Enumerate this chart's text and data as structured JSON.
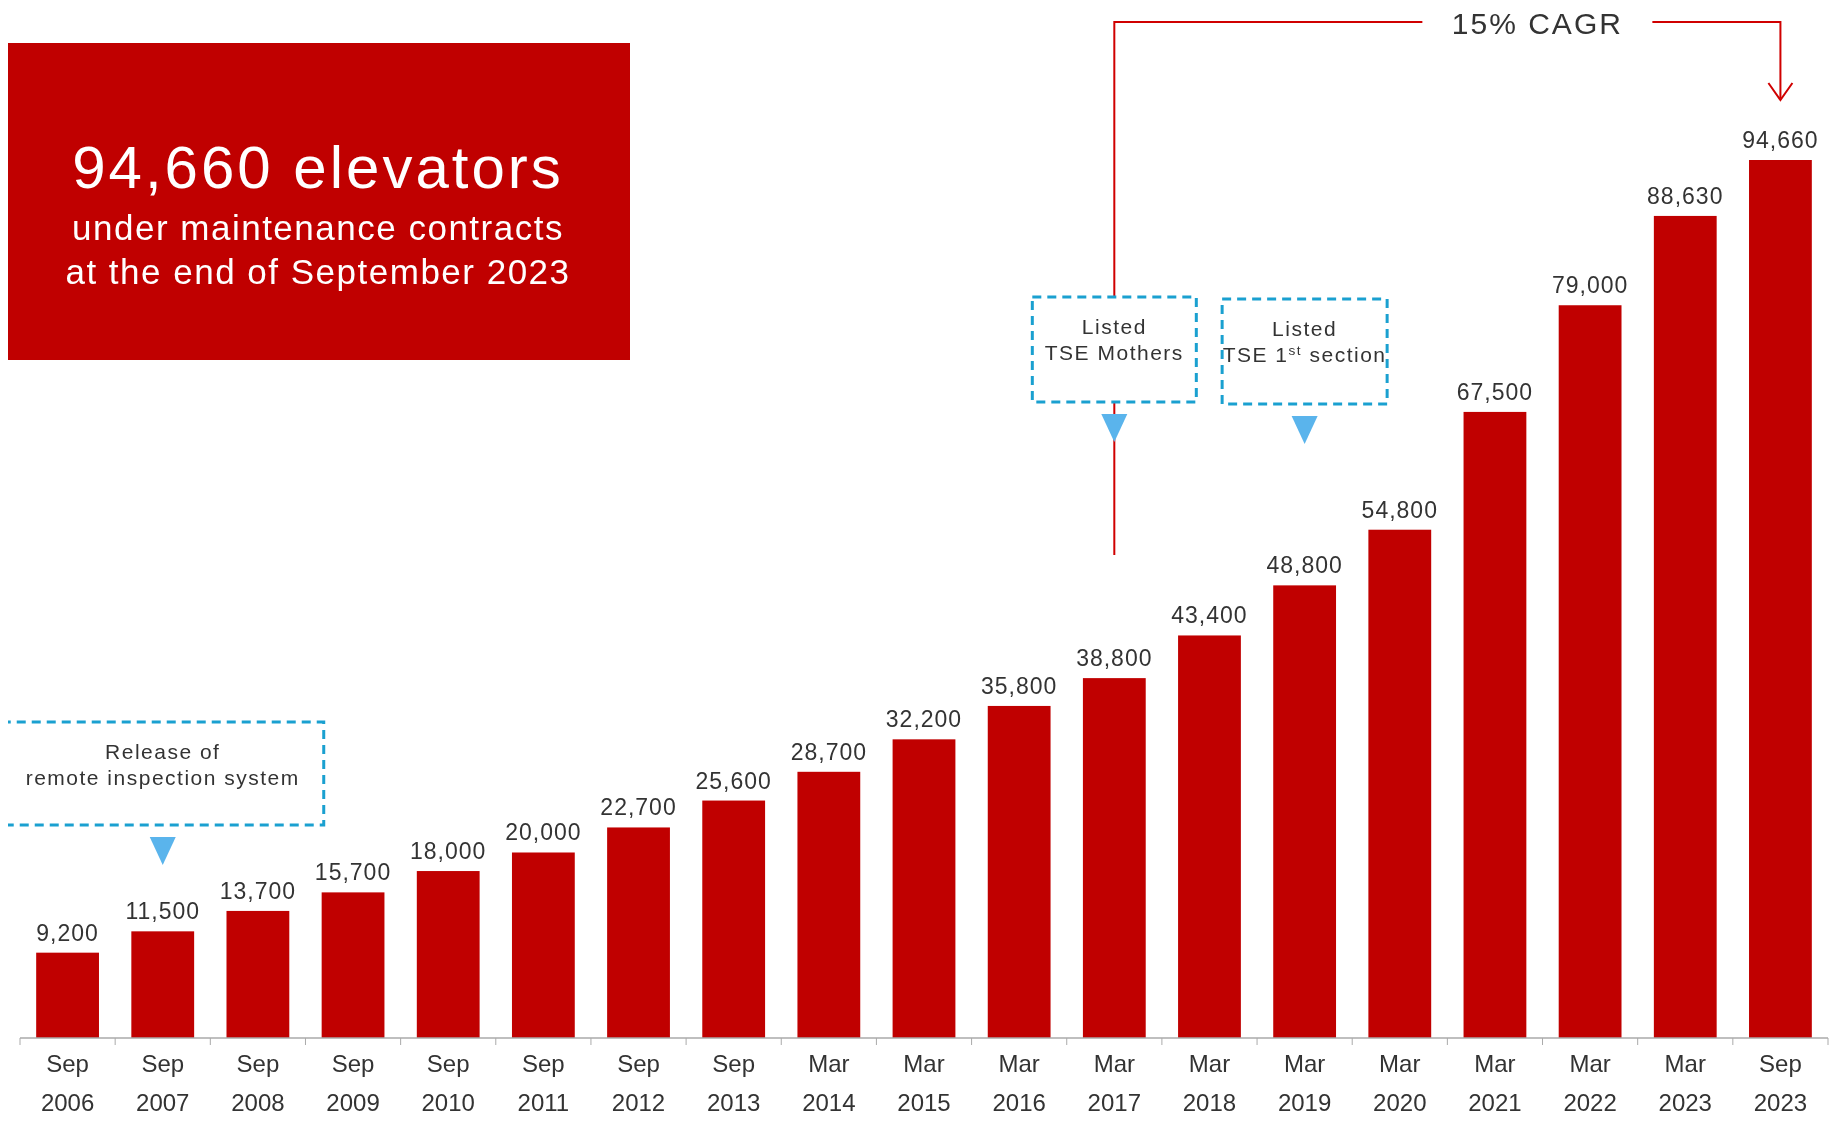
{
  "chart_data": {
    "type": "bar",
    "title": "94,660 elevators",
    "subtitle": "under maintenance contracts\nat the end of September 2023",
    "categories": [
      "Sep 2006",
      "Sep 2007",
      "Sep 2008",
      "Sep 2009",
      "Sep 2010",
      "Sep 2011",
      "Sep 2012",
      "Sep 2013",
      "Mar 2014",
      "Mar 2015",
      "Mar 2016",
      "Mar 2017",
      "Mar 2018",
      "Mar 2019",
      "Mar 2020",
      "Mar 2021",
      "Mar 2022",
      "Mar 2023",
      "Sep 2023"
    ],
    "values": [
      9200,
      11500,
      13700,
      15700,
      18000,
      20000,
      22700,
      25600,
      28700,
      32200,
      35800,
      38800,
      43400,
      48800,
      54800,
      67500,
      79000,
      88630,
      94660
    ],
    "value_labels": [
      "9,200",
      "11,500",
      "13,700",
      "15,700",
      "18,000",
      "20,000",
      "22,700",
      "25,600",
      "28,700",
      "32,200",
      "35,800",
      "38,800",
      "43,400",
      "48,800",
      "54,800",
      "67,500",
      "79,000",
      "88,630",
      "94,660"
    ],
    "color": "#c00000",
    "annotations": [
      "15% CAGR",
      "Listed\nTSE Mothers",
      "Listed\nTSE 1$^{st}$ section",
      "Release of\nremote inspection system"
    ]
  }
}
